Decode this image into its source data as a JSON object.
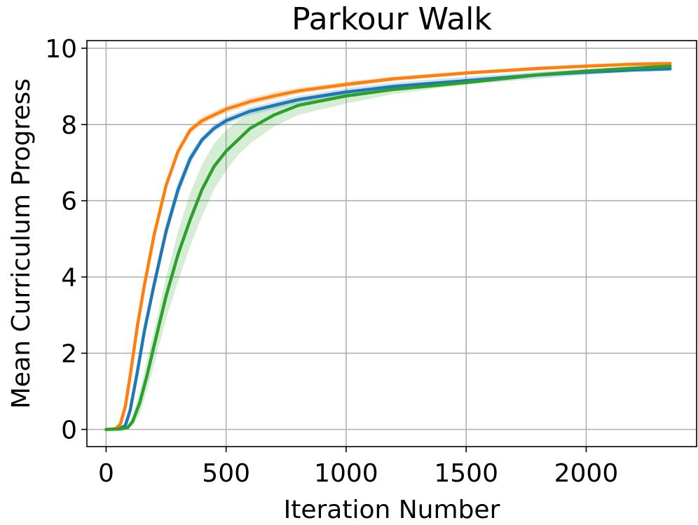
{
  "chart_data": {
    "type": "line",
    "title": "Parkour Walk",
    "xlabel": "Iteration Number",
    "ylabel": "Mean Curriculum Progress",
    "xlim": [
      -80,
      2460
    ],
    "ylim": [
      -0.45,
      10.2
    ],
    "xticks": [
      0,
      500,
      1000,
      1500,
      2000
    ],
    "yticks": [
      0,
      2,
      4,
      6,
      8,
      10
    ],
    "grid": true,
    "legend": "none",
    "series": [
      {
        "color": "#1f77b4",
        "x": [
          0,
          50,
          80,
          100,
          130,
          160,
          200,
          250,
          300,
          350,
          400,
          450,
          500,
          600,
          700,
          800,
          1000,
          1200,
          1500,
          1800,
          2000,
          2200,
          2350
        ],
        "y": [
          0,
          0.01,
          0.1,
          0.5,
          1.5,
          2.6,
          3.8,
          5.2,
          6.3,
          7.1,
          7.6,
          7.9,
          8.1,
          8.35,
          8.5,
          8.65,
          8.85,
          9.0,
          9.15,
          9.3,
          9.37,
          9.43,
          9.46
        ],
        "lower": [
          0,
          0.0,
          0.05,
          0.35,
          1.3,
          2.4,
          3.6,
          5.0,
          6.1,
          6.95,
          7.5,
          7.8,
          8.0,
          8.25,
          8.4,
          8.55,
          8.75,
          8.9,
          9.05,
          9.2,
          9.3,
          9.37,
          9.4
        ],
        "upper": [
          0,
          0.02,
          0.15,
          0.65,
          1.7,
          2.8,
          4.0,
          5.4,
          6.5,
          7.25,
          7.7,
          8.0,
          8.2,
          8.45,
          8.6,
          8.75,
          8.95,
          9.1,
          9.25,
          9.38,
          9.45,
          9.5,
          9.53
        ]
      },
      {
        "color": "#ff7f0e",
        "x": [
          0,
          40,
          60,
          80,
          100,
          130,
          160,
          200,
          250,
          300,
          350,
          400,
          450,
          500,
          600,
          700,
          800,
          1000,
          1200,
          1500,
          1800,
          2000,
          2200,
          2350
        ],
        "y": [
          0,
          0.02,
          0.15,
          0.6,
          1.4,
          2.7,
          3.8,
          5.1,
          6.4,
          7.3,
          7.85,
          8.1,
          8.25,
          8.4,
          8.6,
          8.75,
          8.88,
          9.05,
          9.2,
          9.35,
          9.47,
          9.53,
          9.58,
          9.6
        ],
        "lower": [
          0,
          0.01,
          0.1,
          0.5,
          1.3,
          2.6,
          3.7,
          5.0,
          6.3,
          7.2,
          7.75,
          8.0,
          8.15,
          8.3,
          8.5,
          8.65,
          8.8,
          8.98,
          9.14,
          9.3,
          9.42,
          9.49,
          9.54,
          9.56
        ],
        "upper": [
          0,
          0.03,
          0.2,
          0.7,
          1.5,
          2.8,
          3.9,
          5.2,
          6.5,
          7.4,
          7.95,
          8.2,
          8.35,
          8.5,
          8.7,
          8.85,
          8.96,
          9.12,
          9.26,
          9.4,
          9.52,
          9.58,
          9.63,
          9.65
        ]
      },
      {
        "color": "#2ca02c",
        "x": [
          0,
          60,
          90,
          110,
          140,
          170,
          200,
          250,
          300,
          350,
          400,
          450,
          500,
          550,
          600,
          700,
          800,
          1000,
          1200,
          1500,
          1800,
          2000,
          2200,
          2350
        ],
        "y": [
          0,
          0.01,
          0.05,
          0.2,
          0.7,
          1.4,
          2.2,
          3.5,
          4.6,
          5.5,
          6.3,
          6.9,
          7.3,
          7.6,
          7.9,
          8.25,
          8.5,
          8.75,
          8.92,
          9.1,
          9.3,
          9.4,
          9.48,
          9.53
        ],
        "lower": [
          0,
          0.0,
          0.02,
          0.1,
          0.4,
          1.0,
          1.7,
          2.9,
          3.9,
          4.8,
          5.6,
          6.3,
          6.8,
          7.2,
          7.5,
          7.95,
          8.25,
          8.55,
          8.8,
          9.05,
          9.25,
          9.35,
          9.44,
          9.49
        ],
        "upper": [
          0,
          0.02,
          0.08,
          0.35,
          1.0,
          1.8,
          2.6,
          4.0,
          5.2,
          6.2,
          6.95,
          7.5,
          7.85,
          8.1,
          8.3,
          8.55,
          8.7,
          8.9,
          9.02,
          9.18,
          9.36,
          9.45,
          9.52,
          9.57
        ]
      }
    ]
  }
}
